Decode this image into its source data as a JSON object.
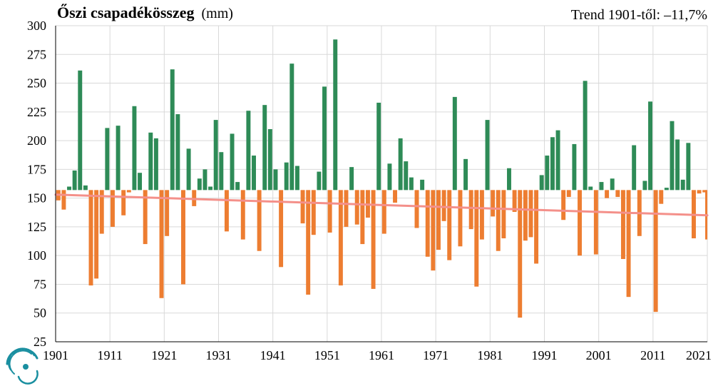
{
  "header": {
    "title": "Őszi csapadékösszeg",
    "unit": "(mm)",
    "trend_label": "Trend 1901-től: –11,7%"
  },
  "colors": {
    "above": "#2e8b57",
    "below": "#ed7d31",
    "trend": "#f4908a",
    "grid": "#d9d9d9",
    "logo": "#1a8fa0"
  },
  "logo": {
    "icon": "swirl-logo-icon"
  },
  "chart_data": {
    "type": "bar",
    "title": "Őszi csapadékösszeg (mm)",
    "annotation": "Trend 1901-től: –11,7%",
    "baseline": 157,
    "ylim": [
      25,
      300
    ],
    "yticks": [
      25,
      50,
      75,
      100,
      125,
      150,
      175,
      200,
      225,
      250,
      275,
      300
    ],
    "xlim": [
      1901,
      2021
    ],
    "xticks": [
      1901,
      1911,
      1921,
      1931,
      1941,
      1951,
      1961,
      1971,
      1981,
      1991,
      2001,
      2011,
      2021
    ],
    "grid": true,
    "trend": {
      "start_year": 1901,
      "start_value": 153,
      "end_year": 2021,
      "end_value": 135
    },
    "x": [
      1901,
      1902,
      1903,
      1904,
      1905,
      1906,
      1907,
      1908,
      1909,
      1910,
      1911,
      1912,
      1913,
      1914,
      1915,
      1916,
      1917,
      1918,
      1919,
      1920,
      1921,
      1922,
      1923,
      1924,
      1925,
      1926,
      1927,
      1928,
      1929,
      1930,
      1931,
      1932,
      1933,
      1934,
      1935,
      1936,
      1937,
      1938,
      1939,
      1940,
      1941,
      1942,
      1943,
      1944,
      1945,
      1946,
      1947,
      1948,
      1949,
      1950,
      1951,
      1952,
      1953,
      1954,
      1955,
      1956,
      1957,
      1958,
      1959,
      1960,
      1961,
      1962,
      1963,
      1964,
      1965,
      1966,
      1967,
      1968,
      1969,
      1970,
      1971,
      1972,
      1973,
      1974,
      1975,
      1976,
      1977,
      1978,
      1979,
      1980,
      1981,
      1982,
      1983,
      1984,
      1985,
      1986,
      1987,
      1988,
      1989,
      1990,
      1991,
      1992,
      1993,
      1994,
      1995,
      1996,
      1997,
      1998,
      1999,
      2000,
      2001,
      2002,
      2003,
      2004,
      2005,
      2006,
      2007,
      2008,
      2009,
      2010,
      2011,
      2012,
      2013,
      2014,
      2015,
      2016,
      2017,
      2018,
      2019,
      2020
    ],
    "values": [
      148,
      140,
      160,
      174,
      261,
      161,
      74,
      80,
      119,
      211,
      125,
      213,
      135,
      155,
      230,
      172,
      110,
      207,
      202,
      63,
      117,
      262,
      223,
      75,
      193,
      143,
      167,
      175,
      160,
      218,
      190,
      121,
      206,
      164,
      114,
      226,
      187,
      104,
      231,
      210,
      175,
      90,
      181,
      267,
      178,
      128,
      66,
      118,
      173,
      247,
      120,
      288,
      74,
      125,
      177,
      127,
      110,
      133,
      71,
      233,
      119,
      180,
      146,
      202,
      182,
      168,
      124,
      166,
      99,
      87,
      105,
      130,
      96,
      238,
      108,
      184,
      123,
      73,
      114,
      218,
      134,
      104,
      115,
      176,
      138,
      46,
      113,
      116,
      93,
      170,
      187,
      203,
      209,
      131,
      151,
      197,
      100,
      252,
      160,
      101,
      164,
      150,
      167,
      151,
      97,
      64,
      196,
      117,
      165,
      234,
      51,
      145,
      159,
      217,
      201,
      166,
      198,
      115,
      154,
      155
    ],
    "last_value": 114
  }
}
